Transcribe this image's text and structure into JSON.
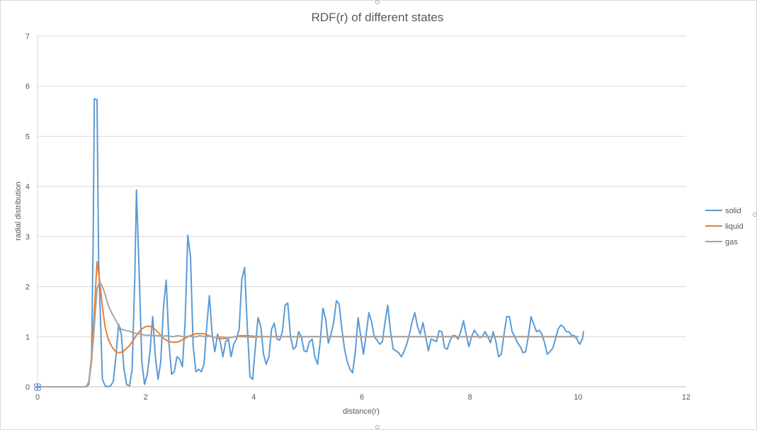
{
  "chart_data": {
    "type": "line",
    "title": "RDF(r) of different states",
    "xlabel": "distance(r)",
    "ylabel": "radial distribution",
    "xlim": [
      0,
      12
    ],
    "ylim": [
      0,
      7
    ],
    "x_ticks": [
      0,
      2,
      4,
      6,
      8,
      10,
      12
    ],
    "y_ticks": [
      0,
      1,
      2,
      3,
      4,
      5,
      6,
      7
    ],
    "grid": "horizontal",
    "legend_position": "right",
    "series": [
      {
        "name": "solid",
        "color": "#5b9bd5",
        "points": [
          [
            0,
            0
          ],
          [
            0.9,
            0
          ],
          [
            0.95,
            0.05
          ],
          [
            1.0,
            0.6
          ],
          [
            1.03,
            3.0
          ],
          [
            1.05,
            5.75
          ],
          [
            1.1,
            5.73
          ],
          [
            1.13,
            2.5
          ],
          [
            1.2,
            0.15
          ],
          [
            1.25,
            0.02
          ],
          [
            1.3,
            0
          ],
          [
            1.35,
            0.02
          ],
          [
            1.4,
            0.1
          ],
          [
            1.45,
            0.6
          ],
          [
            1.5,
            1.25
          ],
          [
            1.55,
            1.05
          ],
          [
            1.6,
            0.35
          ],
          [
            1.65,
            0.04
          ],
          [
            1.7,
            0.02
          ],
          [
            1.75,
            0.35
          ],
          [
            1.8,
            2.2
          ],
          [
            1.83,
            3.93
          ],
          [
            1.88,
            2.3
          ],
          [
            1.93,
            0.5
          ],
          [
            1.98,
            0.05
          ],
          [
            2.03,
            0.25
          ],
          [
            2.08,
            0.7
          ],
          [
            2.13,
            1.4
          ],
          [
            2.18,
            0.6
          ],
          [
            2.23,
            0.15
          ],
          [
            2.28,
            0.5
          ],
          [
            2.33,
            1.6
          ],
          [
            2.38,
            2.13
          ],
          [
            2.43,
            0.9
          ],
          [
            2.48,
            0.25
          ],
          [
            2.53,
            0.3
          ],
          [
            2.58,
            0.6
          ],
          [
            2.63,
            0.55
          ],
          [
            2.68,
            0.4
          ],
          [
            2.73,
            1.3
          ],
          [
            2.78,
            3.03
          ],
          [
            2.83,
            2.6
          ],
          [
            2.88,
            0.8
          ],
          [
            2.93,
            0.3
          ],
          [
            2.98,
            0.35
          ],
          [
            3.03,
            0.3
          ],
          [
            3.08,
            0.45
          ],
          [
            3.13,
            1.2
          ],
          [
            3.18,
            1.82
          ],
          [
            3.23,
            1.05
          ],
          [
            3.28,
            0.7
          ],
          [
            3.33,
            1.05
          ],
          [
            3.38,
            0.9
          ],
          [
            3.43,
            0.6
          ],
          [
            3.48,
            0.9
          ],
          [
            3.53,
            0.95
          ],
          [
            3.58,
            0.6
          ],
          [
            3.63,
            0.85
          ],
          [
            3.68,
            0.95
          ],
          [
            3.73,
            1.15
          ],
          [
            3.78,
            2.15
          ],
          [
            3.83,
            2.38
          ],
          [
            3.88,
            1.2
          ],
          [
            3.93,
            0.2
          ],
          [
            3.98,
            0.15
          ],
          [
            4.03,
            0.8
          ],
          [
            4.08,
            1.38
          ],
          [
            4.13,
            1.2
          ],
          [
            4.18,
            0.65
          ],
          [
            4.23,
            0.45
          ],
          [
            4.28,
            0.6
          ],
          [
            4.33,
            1.15
          ],
          [
            4.38,
            1.27
          ],
          [
            4.43,
            0.95
          ],
          [
            4.48,
            0.93
          ],
          [
            4.53,
            1.1
          ],
          [
            4.58,
            1.63
          ],
          [
            4.63,
            1.67
          ],
          [
            4.68,
            1.0
          ],
          [
            4.73,
            0.75
          ],
          [
            4.78,
            0.8
          ],
          [
            4.83,
            1.1
          ],
          [
            4.88,
            1.0
          ],
          [
            4.93,
            0.72
          ],
          [
            4.98,
            0.7
          ],
          [
            5.03,
            0.9
          ],
          [
            5.08,
            0.95
          ],
          [
            5.13,
            0.6
          ],
          [
            5.18,
            0.45
          ],
          [
            5.23,
            0.9
          ],
          [
            5.28,
            1.57
          ],
          [
            5.33,
            1.35
          ],
          [
            5.38,
            0.87
          ],
          [
            5.43,
            1.05
          ],
          [
            5.48,
            1.3
          ],
          [
            5.53,
            1.72
          ],
          [
            5.58,
            1.65
          ],
          [
            5.63,
            1.15
          ],
          [
            5.68,
            0.75
          ],
          [
            5.73,
            0.5
          ],
          [
            5.78,
            0.35
          ],
          [
            5.83,
            0.28
          ],
          [
            5.88,
            0.7
          ],
          [
            5.93,
            1.38
          ],
          [
            5.98,
            1.0
          ],
          [
            6.03,
            0.65
          ],
          [
            6.08,
            1.05
          ],
          [
            6.13,
            1.48
          ],
          [
            6.18,
            1.3
          ],
          [
            6.23,
            1.0
          ],
          [
            6.28,
            0.93
          ],
          [
            6.33,
            0.85
          ],
          [
            6.38,
            0.9
          ],
          [
            6.43,
            1.3
          ],
          [
            6.48,
            1.63
          ],
          [
            6.53,
            1.1
          ],
          [
            6.58,
            0.75
          ],
          [
            6.63,
            0.72
          ],
          [
            6.68,
            0.68
          ],
          [
            6.73,
            0.6
          ],
          [
            6.78,
            0.7
          ],
          [
            6.83,
            0.85
          ],
          [
            6.88,
            1.05
          ],
          [
            6.93,
            1.3
          ],
          [
            6.98,
            1.48
          ],
          [
            7.03,
            1.2
          ],
          [
            7.08,
            1.05
          ],
          [
            7.13,
            1.28
          ],
          [
            7.18,
            1.0
          ],
          [
            7.23,
            0.72
          ],
          [
            7.28,
            0.95
          ],
          [
            7.33,
            0.93
          ],
          [
            7.38,
            0.9
          ],
          [
            7.43,
            1.12
          ],
          [
            7.48,
            1.1
          ],
          [
            7.53,
            0.78
          ],
          [
            7.58,
            0.75
          ],
          [
            7.63,
            0.92
          ],
          [
            7.68,
            1.02
          ],
          [
            7.73,
            1.02
          ],
          [
            7.78,
            0.95
          ],
          [
            7.83,
            1.1
          ],
          [
            7.88,
            1.32
          ],
          [
            7.93,
            1.05
          ],
          [
            7.98,
            0.8
          ],
          [
            8.03,
            1.0
          ],
          [
            8.08,
            1.13
          ],
          [
            8.13,
            1.05
          ],
          [
            8.18,
            0.98
          ],
          [
            8.23,
            1.0
          ],
          [
            8.28,
            1.1
          ],
          [
            8.33,
            1.0
          ],
          [
            8.38,
            0.88
          ],
          [
            8.43,
            1.1
          ],
          [
            8.48,
            0.9
          ],
          [
            8.53,
            0.6
          ],
          [
            8.58,
            0.65
          ],
          [
            8.63,
            1.05
          ],
          [
            8.68,
            1.4
          ],
          [
            8.73,
            1.4
          ],
          [
            8.78,
            1.1
          ],
          [
            8.83,
            1.0
          ],
          [
            8.88,
            0.88
          ],
          [
            8.93,
            0.8
          ],
          [
            8.98,
            0.68
          ],
          [
            9.03,
            0.7
          ],
          [
            9.08,
            1.0
          ],
          [
            9.13,
            1.4
          ],
          [
            9.18,
            1.25
          ],
          [
            9.23,
            1.1
          ],
          [
            9.28,
            1.13
          ],
          [
            9.33,
            1.05
          ],
          [
            9.38,
            0.88
          ],
          [
            9.43,
            0.65
          ],
          [
            9.48,
            0.7
          ],
          [
            9.53,
            0.77
          ],
          [
            9.58,
            0.95
          ],
          [
            9.63,
            1.15
          ],
          [
            9.68,
            1.23
          ],
          [
            9.73,
            1.2
          ],
          [
            9.78,
            1.1
          ],
          [
            9.83,
            1.1
          ],
          [
            9.88,
            1.03
          ],
          [
            9.93,
            1.02
          ],
          [
            9.98,
            0.95
          ],
          [
            10.03,
            0.85
          ],
          [
            10.08,
            0.95
          ],
          [
            10.1,
            1.1
          ]
        ]
      },
      {
        "name": "liquid",
        "color": "#ed7d31",
        "points": [
          [
            0,
            0
          ],
          [
            0.9,
            0
          ],
          [
            0.95,
            0.1
          ],
          [
            1.0,
            0.6
          ],
          [
            1.05,
            1.5
          ],
          [
            1.1,
            2.5
          ],
          [
            1.15,
            2.1
          ],
          [
            1.2,
            1.6
          ],
          [
            1.25,
            1.2
          ],
          [
            1.3,
            0.98
          ],
          [
            1.35,
            0.85
          ],
          [
            1.4,
            0.76
          ],
          [
            1.45,
            0.7
          ],
          [
            1.5,
            0.68
          ],
          [
            1.55,
            0.69
          ],
          [
            1.6,
            0.72
          ],
          [
            1.65,
            0.77
          ],
          [
            1.7,
            0.82
          ],
          [
            1.75,
            0.9
          ],
          [
            1.8,
            0.98
          ],
          [
            1.85,
            1.06
          ],
          [
            1.9,
            1.12
          ],
          [
            1.95,
            1.17
          ],
          [
            2.0,
            1.2
          ],
          [
            2.05,
            1.21
          ],
          [
            2.1,
            1.2
          ],
          [
            2.15,
            1.17
          ],
          [
            2.2,
            1.12
          ],
          [
            2.25,
            1.06
          ],
          [
            2.3,
            1.0
          ],
          [
            2.35,
            0.95
          ],
          [
            2.4,
            0.92
          ],
          [
            2.45,
            0.9
          ],
          [
            2.5,
            0.89
          ],
          [
            2.55,
            0.89
          ],
          [
            2.6,
            0.9
          ],
          [
            2.65,
            0.92
          ],
          [
            2.7,
            0.95
          ],
          [
            2.75,
            0.98
          ],
          [
            2.8,
            1.01
          ],
          [
            2.85,
            1.03
          ],
          [
            2.9,
            1.05
          ],
          [
            2.95,
            1.06
          ],
          [
            3.0,
            1.06
          ],
          [
            3.05,
            1.06
          ],
          [
            3.1,
            1.05
          ],
          [
            3.15,
            1.03
          ],
          [
            3.2,
            1.01
          ],
          [
            3.25,
            0.99
          ],
          [
            3.3,
            0.98
          ],
          [
            3.35,
            0.97
          ],
          [
            3.4,
            0.96
          ],
          [
            3.45,
            0.96
          ],
          [
            3.5,
            0.97
          ],
          [
            3.55,
            0.98
          ],
          [
            3.6,
            0.99
          ],
          [
            3.65,
            1.0
          ],
          [
            3.7,
            1.01
          ],
          [
            3.75,
            1.02
          ],
          [
            3.8,
            1.02
          ],
          [
            3.9,
            1.02
          ],
          [
            4.0,
            1.01
          ],
          [
            4.2,
            1.0
          ],
          [
            4.5,
            1.0
          ],
          [
            5.0,
            1.0
          ],
          [
            6.0,
            1.0
          ],
          [
            7.0,
            1.0
          ],
          [
            8.0,
            1.0
          ],
          [
            9.0,
            1.0
          ],
          [
            10.0,
            1.0
          ]
        ]
      },
      {
        "name": "gas",
        "color": "#a5a5a5",
        "points": [
          [
            0,
            0
          ],
          [
            0.9,
            0
          ],
          [
            0.95,
            0.1
          ],
          [
            1.0,
            0.5
          ],
          [
            1.05,
            1.2
          ],
          [
            1.1,
            1.95
          ],
          [
            1.15,
            2.1
          ],
          [
            1.2,
            2.0
          ],
          [
            1.25,
            1.85
          ],
          [
            1.3,
            1.65
          ],
          [
            1.35,
            1.52
          ],
          [
            1.4,
            1.42
          ],
          [
            1.45,
            1.32
          ],
          [
            1.5,
            1.22
          ],
          [
            1.55,
            1.15
          ],
          [
            1.6,
            1.13
          ],
          [
            1.65,
            1.12
          ],
          [
            1.7,
            1.11
          ],
          [
            1.75,
            1.09
          ],
          [
            1.8,
            1.07
          ],
          [
            1.85,
            1.06
          ],
          [
            1.9,
            1.05
          ],
          [
            1.95,
            1.04
          ],
          [
            2.0,
            1.03
          ],
          [
            2.1,
            1.03
          ],
          [
            2.2,
            1.02
          ],
          [
            2.3,
            1.01
          ],
          [
            2.4,
            1.02
          ],
          [
            2.5,
            1.0
          ],
          [
            2.6,
            1.02
          ],
          [
            2.7,
            1.0
          ],
          [
            2.8,
            1.01
          ],
          [
            2.9,
            0.99
          ],
          [
            3.0,
            1.02
          ],
          [
            3.1,
            1.0
          ],
          [
            3.2,
            1.01
          ],
          [
            3.3,
            0.98
          ],
          [
            3.4,
            1.0
          ],
          [
            3.5,
            0.98
          ],
          [
            3.6,
            0.99
          ],
          [
            3.7,
            1.0
          ],
          [
            3.8,
            1.0
          ],
          [
            4.0,
            0.99
          ],
          [
            4.2,
            1.0
          ],
          [
            4.5,
            1.0
          ],
          [
            5.0,
            1.0
          ],
          [
            5.5,
            1.0
          ],
          [
            6.0,
            1.0
          ],
          [
            7.0,
            1.0
          ],
          [
            8.0,
            1.0
          ],
          [
            9.0,
            1.0
          ],
          [
            10.0,
            1.0
          ]
        ]
      }
    ]
  }
}
